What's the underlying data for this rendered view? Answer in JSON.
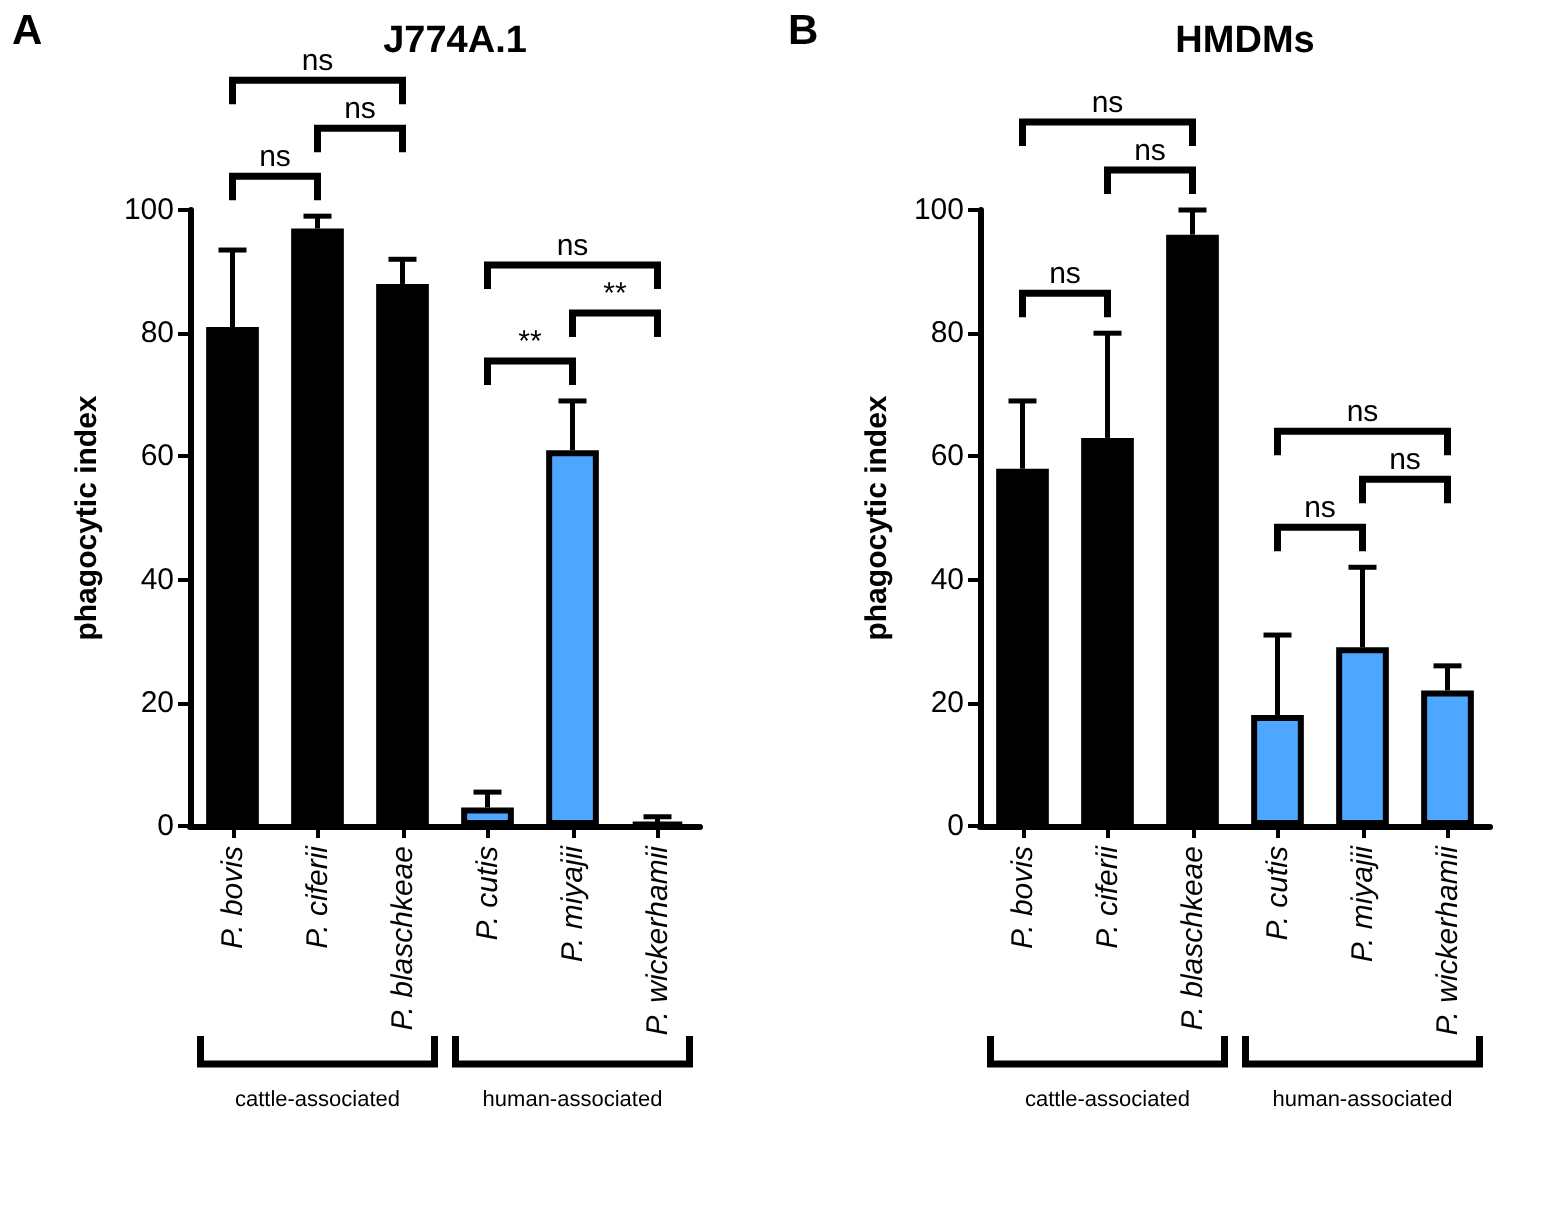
{
  "chart_data": [
    {
      "type": "bar",
      "title": "J774A.1",
      "ylabel": "phagocytic index",
      "categories": [
        "P. bovis",
        "P. ciferii",
        "P. blaschkeae",
        "P. cutis",
        "P. miyajii",
        "P. wickerhamii"
      ],
      "values": [
        81,
        97,
        88,
        3,
        61,
        0.5
      ],
      "colors": [
        "#000000",
        "#000000",
        "#000000",
        "#4da6ff",
        "#4da6ff",
        "#000000"
      ],
      "errors": [
        [
          81,
          93.5
        ],
        [
          97,
          99
        ],
        [
          88,
          92
        ],
        [
          3,
          5.5
        ],
        [
          61,
          69
        ],
        [
          0.5,
          1.5
        ]
      ],
      "ylim": [
        0,
        100
      ],
      "yticks": [
        0,
        20,
        40,
        60,
        80,
        100
      ],
      "annotations": [
        "A",
        "ns",
        "ns",
        "ns",
        "**",
        "**",
        "ns",
        "cattle-associated",
        "human-associated"
      ]
    },
    {
      "type": "bar",
      "title": "HMDMs",
      "ylabel": "phagocytic index",
      "categories": [
        "P. bovis",
        "P. ciferii",
        "P. blaschkeae",
        "P. cutis",
        "P. miyajii",
        "P. wickerhamii"
      ],
      "values": [
        58,
        63,
        96,
        18,
        29,
        22
      ],
      "colors": [
        "#000000",
        "#000000",
        "#000000",
        "#4da6ff",
        "#4da6ff",
        "#4da6ff"
      ],
      "errors": [
        [
          58,
          69
        ],
        [
          63,
          80
        ],
        [
          96,
          100
        ],
        [
          18,
          31
        ],
        [
          29,
          42
        ],
        [
          22,
          26
        ]
      ],
      "ylim": [
        0,
        100
      ],
      "yticks": [
        0,
        20,
        40,
        60,
        80,
        100
      ],
      "annotations": [
        "B",
        "ns",
        "ns",
        "ns",
        "ns",
        "ns",
        "ns",
        "cattle-associated",
        "human-associated"
      ]
    }
  ]
}
